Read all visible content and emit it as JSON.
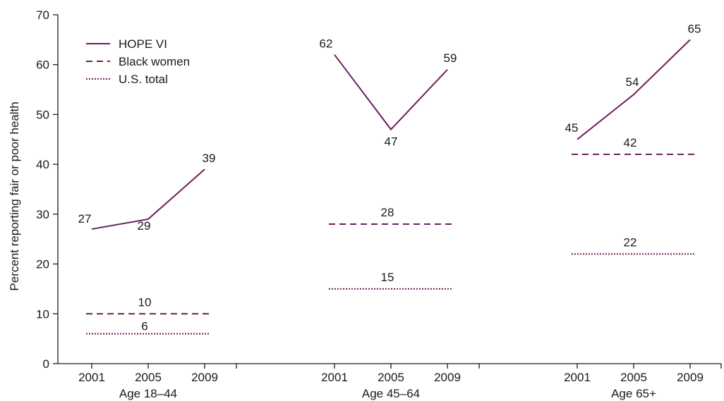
{
  "chart_data": {
    "type": "line",
    "title": "",
    "xlabel": "",
    "ylabel": "Percent reporting fair or poor health",
    "ylim": [
      0,
      70
    ],
    "yticks": [
      0,
      10,
      20,
      30,
      40,
      50,
      60,
      70
    ],
    "grid": false,
    "legend_position": "top-left",
    "colors": {
      "series": "#6b1e5e",
      "axis": "#1a1a1a"
    },
    "groups": [
      {
        "label": "Age 18–44",
        "years": [
          "2001",
          "2005",
          "2009"
        ]
      },
      {
        "label": "Age 45–64",
        "years": [
          "2001",
          "2005",
          "2009"
        ]
      },
      {
        "label": "Age 65+",
        "years": [
          "2001",
          "2005",
          "2009"
        ]
      }
    ],
    "series": [
      {
        "name": "HOPE VI",
        "style": "solid",
        "groups": [
          [
            27,
            29,
            39
          ],
          [
            62,
            47,
            59
          ],
          [
            45,
            54,
            65
          ]
        ]
      },
      {
        "name": "Black women",
        "style": "dashed",
        "groups": [
          [
            10,
            10,
            10
          ],
          [
            28,
            28,
            28
          ],
          [
            42,
            42,
            42
          ]
        ]
      },
      {
        "name": "U.S. total",
        "style": "dotted",
        "groups": [
          [
            6,
            6,
            6
          ],
          [
            15,
            15,
            15
          ],
          [
            22,
            22,
            22
          ]
        ]
      }
    ]
  }
}
